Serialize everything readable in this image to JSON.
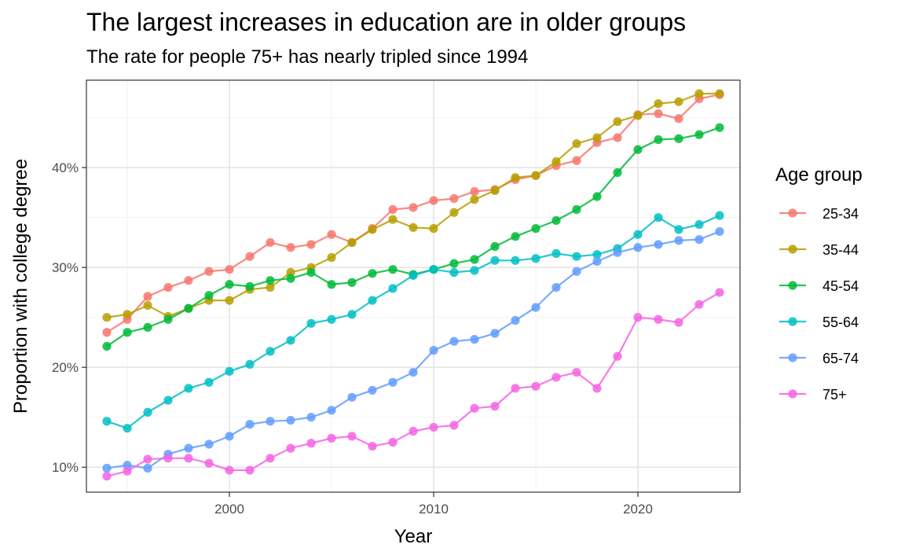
{
  "chart_data": {
    "type": "line",
    "title": "The largest increases in education are in older groups",
    "subtitle": "The rate for people 75+ has nearly tripled since 1994",
    "xlabel": "Year",
    "ylabel": "Proportion with college degree",
    "xlim": [
      1993,
      2025
    ],
    "ylim": [
      0.075,
      0.4875
    ],
    "x_ticks": [
      2000,
      2010,
      2020
    ],
    "x_tick_labels": [
      "2000",
      "2010",
      "2020"
    ],
    "y_ticks": [
      0.1,
      0.2,
      0.3,
      0.4
    ],
    "y_tick_labels": [
      "10%",
      "20%",
      "30%",
      "40%"
    ],
    "grid": true,
    "legend_title": "Age group",
    "legend_position": "right",
    "x": [
      1994,
      1995,
      1996,
      1997,
      1998,
      1999,
      2000,
      2001,
      2002,
      2003,
      2004,
      2005,
      2006,
      2007,
      2008,
      2009,
      2010,
      2011,
      2012,
      2013,
      2014,
      2015,
      2016,
      2017,
      2018,
      2019,
      2020,
      2021,
      2022,
      2023,
      2024
    ],
    "series": [
      {
        "name": "25-34",
        "color": "#F8766D",
        "values": [
          0.235,
          0.248,
          0.271,
          0.28,
          0.287,
          0.296,
          0.298,
          0.311,
          0.325,
          0.32,
          0.323,
          0.333,
          0.325,
          0.339,
          0.358,
          0.36,
          0.367,
          0.369,
          0.376,
          0.378,
          0.388,
          0.392,
          0.402,
          0.407,
          0.425,
          0.43,
          0.453,
          0.454,
          0.449,
          0.469,
          0.473
        ]
      },
      {
        "name": "35-44",
        "color": "#B79F00",
        "values": [
          0.25,
          0.253,
          0.262,
          0.251,
          0.259,
          0.267,
          0.267,
          0.278,
          0.28,
          0.295,
          0.3,
          0.31,
          0.325,
          0.338,
          0.348,
          0.34,
          0.339,
          0.355,
          0.368,
          0.377,
          0.39,
          0.392,
          0.406,
          0.424,
          0.43,
          0.446,
          0.452,
          0.464,
          0.466,
          0.474,
          0.474
        ]
      },
      {
        "name": "45-54",
        "color": "#00BA38",
        "values": [
          0.221,
          0.235,
          0.24,
          0.248,
          0.259,
          0.272,
          0.283,
          0.281,
          0.287,
          0.289,
          0.295,
          0.283,
          0.285,
          0.294,
          0.298,
          0.293,
          0.298,
          0.304,
          0.308,
          0.321,
          0.331,
          0.339,
          0.347,
          0.358,
          0.371,
          0.395,
          0.418,
          0.428,
          0.429,
          0.433,
          0.44
        ]
      },
      {
        "name": "55-64",
        "color": "#00BFC4",
        "values": [
          0.146,
          0.139,
          0.155,
          0.167,
          0.179,
          0.185,
          0.196,
          0.203,
          0.216,
          0.227,
          0.244,
          0.248,
          0.253,
          0.267,
          0.279,
          0.292,
          0.298,
          0.295,
          0.297,
          0.307,
          0.307,
          0.309,
          0.314,
          0.311,
          0.313,
          0.319,
          0.333,
          0.35,
          0.338,
          0.343,
          0.352
        ]
      },
      {
        "name": "65-74",
        "color": "#619CFF",
        "values": [
          0.099,
          0.102,
          0.099,
          0.113,
          0.119,
          0.123,
          0.131,
          0.143,
          0.146,
          0.147,
          0.15,
          0.157,
          0.17,
          0.177,
          0.185,
          0.195,
          0.217,
          0.226,
          0.228,
          0.234,
          0.247,
          0.26,
          0.28,
          0.296,
          0.306,
          0.315,
          0.32,
          0.323,
          0.327,
          0.328,
          0.336
        ]
      },
      {
        "name": "75+",
        "color": "#F564E3",
        "values": [
          0.091,
          0.096,
          0.108,
          0.109,
          0.109,
          0.104,
          0.097,
          0.097,
          0.109,
          0.119,
          0.124,
          0.129,
          0.131,
          0.121,
          0.125,
          0.136,
          0.14,
          0.142,
          0.159,
          0.161,
          0.179,
          0.181,
          0.19,
          0.195,
          0.179,
          0.211,
          0.25,
          0.248,
          0.245,
          0.263,
          0.275
        ]
      }
    ]
  }
}
